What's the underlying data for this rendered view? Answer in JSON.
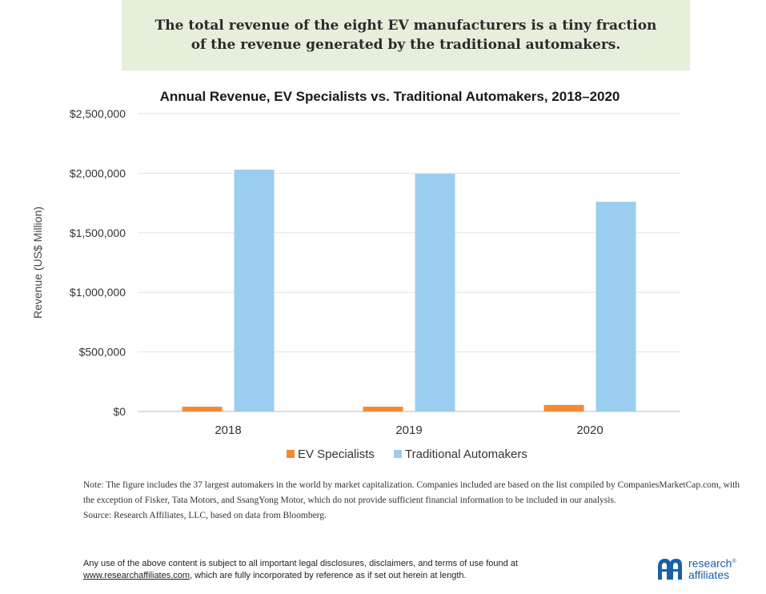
{
  "banner": {
    "text": "The total revenue of the eight EV manufacturers is a tiny fraction of the revenue generated by the traditional automakers."
  },
  "chart_data": {
    "type": "bar",
    "title": "Annual Revenue, EV Specialists vs. Traditional Automakers, 2018–2020",
    "xlabel": "",
    "ylabel": "Revenue (US$ Million)",
    "categories": [
      "2018",
      "2019",
      "2020"
    ],
    "series": [
      {
        "name": "EV Specialists",
        "values": [
          40000,
          40000,
          55000
        ],
        "color": "#f28a30"
      },
      {
        "name": "Traditional Automakers",
        "values": [
          2030000,
          1995000,
          1760000
        ],
        "color": "#9bcdf0"
      }
    ],
    "ylim": [
      0,
      2500000
    ],
    "yticks": [
      0,
      500000,
      1000000,
      1500000,
      2000000,
      2500000
    ],
    "ytick_labels": [
      "$0",
      "$500,000",
      "$1,000,000",
      "$1,500,000",
      "$2,000,000",
      "$2,500,000"
    ],
    "grid": true,
    "legend_position": "bottom"
  },
  "note": {
    "text": "Note: The figure includes the 37 largest automakers in the world by market capitalization. Companies included are based on the list compiled by CompaniesMarketCap.com, with the exception of Fisker, Tata Motors, and SsangYong Motor, which do not provide sufficient financial information to be included in our analysis.",
    "source": "Source: Research Affiliates, LLC, based on data from Bloomberg."
  },
  "legal": {
    "line1": "Any use of the above content is subject to all important legal disclosures, disclaimers, and terms of use found at",
    "url": "www.researchaffiliates.com",
    "line2_rest": ", which are fully incorporated by reference as if set out herein at length."
  },
  "logo": {
    "line1": "research",
    "trademark": "®",
    "line2": "affiliates",
    "color": "#1a5fa8"
  }
}
